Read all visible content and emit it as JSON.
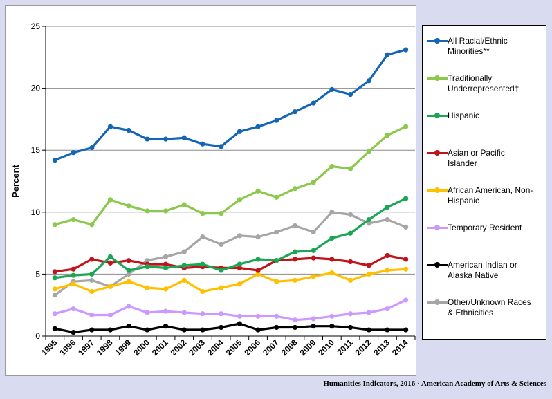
{
  "footer": "Humanities Indicators, 2016 · American Academy of Arts & Sciences",
  "chart_data": {
    "type": "line",
    "title": "",
    "xlabel": "",
    "ylabel": "Percent",
    "ylim": [
      0,
      25
    ],
    "yticks": [
      0,
      5,
      10,
      15,
      20,
      25
    ],
    "grid": true,
    "legend_position": "right",
    "x": [
      "1995",
      "1996",
      "1997",
      "1998",
      "1999",
      "2000",
      "2001",
      "2002",
      "2003",
      "2004",
      "2005",
      "2006",
      "2007",
      "2008",
      "2009",
      "2010",
      "2011",
      "2012",
      "2013",
      "2014"
    ],
    "series": [
      {
        "name": "All Racial/Ethnic Minorities**",
        "color": "#1565b5",
        "values": [
          14.2,
          14.8,
          15.2,
          16.9,
          16.6,
          15.9,
          15.9,
          16.0,
          15.5,
          15.3,
          16.5,
          16.9,
          17.4,
          18.1,
          18.8,
          19.9,
          19.5,
          20.6,
          22.7,
          23.1
        ]
      },
      {
        "name": "Traditionally Underrepresented†",
        "color": "#8cc84b",
        "values": [
          9.0,
          9.4,
          9.0,
          11.0,
          10.5,
          10.1,
          10.1,
          10.6,
          9.9,
          9.9,
          11.0,
          11.7,
          11.2,
          11.9,
          12.4,
          13.7,
          13.5,
          14.9,
          16.2,
          16.9
        ]
      },
      {
        "name": "Hispanic",
        "color": "#1aa655",
        "values": [
          4.7,
          4.9,
          5.0,
          6.4,
          5.3,
          5.6,
          5.5,
          5.7,
          5.8,
          5.3,
          5.8,
          6.2,
          6.1,
          6.8,
          6.9,
          7.9,
          8.3,
          9.4,
          10.4,
          11.1
        ]
      },
      {
        "name": "Asian or Pacific Islander",
        "color": "#c0141b",
        "values": [
          5.2,
          5.4,
          6.2,
          5.9,
          6.1,
          5.8,
          5.8,
          5.5,
          5.6,
          5.5,
          5.5,
          5.3,
          6.1,
          6.2,
          6.3,
          6.2,
          6.0,
          5.7,
          6.5,
          6.2
        ]
      },
      {
        "name": "African American, Non-Hispanic",
        "color": "#ffc000",
        "values": [
          3.8,
          4.2,
          3.6,
          4.0,
          4.4,
          3.9,
          3.8,
          4.5,
          3.6,
          3.9,
          4.2,
          5.0,
          4.4,
          4.5,
          4.8,
          5.1,
          4.5,
          5.0,
          5.3,
          5.4
        ]
      },
      {
        "name": "Temporary Resident",
        "color": "#cc99ff",
        "values": [
          1.8,
          2.2,
          1.7,
          1.7,
          2.4,
          1.9,
          2.0,
          1.9,
          1.8,
          1.8,
          1.6,
          1.6,
          1.6,
          1.3,
          1.4,
          1.6,
          1.8,
          1.9,
          2.2,
          2.9
        ]
      },
      {
        "name": "American Indian or Alaska Native",
        "color": "#000000",
        "values": [
          0.6,
          0.3,
          0.5,
          0.5,
          0.8,
          0.5,
          0.8,
          0.5,
          0.5,
          0.7,
          1.0,
          0.5,
          0.7,
          0.7,
          0.8,
          0.8,
          0.7,
          0.5,
          0.5,
          0.5
        ]
      },
      {
        "name": "Other/Unknown Races & Ethnicities",
        "color": "#a6a6a6",
        "values": [
          3.3,
          4.4,
          4.5,
          4.0,
          5.0,
          6.1,
          6.4,
          6.8,
          8.0,
          7.4,
          8.1,
          8.0,
          8.4,
          8.9,
          8.4,
          10.0,
          9.8,
          9.1,
          9.4,
          8.8
        ]
      }
    ]
  },
  "legend_labels": [
    "All Racial/Ethnic\nMinorities**",
    "Traditionally\nUnderrepresented†",
    "Hispanic",
    "Asian or Pacific\nIslander",
    "African American, Non-\nHispanic",
    "Temporary Resident",
    "American Indian or\nAlaska Native",
    "Other/Unknown Races\n& Ethnicities"
  ]
}
